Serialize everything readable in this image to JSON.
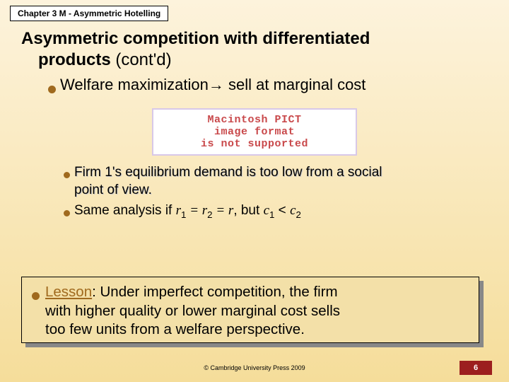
{
  "colors": {
    "bg_top": "#fdf3dc",
    "bg_bottom": "#f5dd9a",
    "chapter_bg": "#ffffff",
    "bullet_color": "#a06a1e",
    "pict_color": "#c9494b",
    "lesson_bg": "#f3e0a8",
    "lesson_word_color": "#a06a1e",
    "page_badge_bg": "#9c1f1f"
  },
  "chapter": "Chapter 3 M - Asymmetric Hotelling",
  "title_line1": "Asymmetric competition with differentiated",
  "title_line2_a": "products",
  "title_line2_b": " (cont'd)",
  "bullet1_a": "Welfare maximization",
  "bullet1_arrow": "→",
  "bullet1_b": " sell at marginal cost",
  "pict": {
    "l1": "Macintosh PICT",
    "l2": "image format",
    "l3": "is not supported"
  },
  "sub1_a": "Firm 1's equilibrium demand is too low from a social",
  "sub1_b": "point of view.",
  "sub2": {
    "pre": "Same analysis if ",
    "r": "r",
    "one": "1",
    "eq1": " = ",
    "r2": "r",
    "two": "2",
    "eq2": " = ",
    "r3": "r",
    "but": ", but ",
    "c": "c",
    "c1": "1",
    "lt": " < ",
    "c2a": "c",
    "c2b": "2"
  },
  "lesson": {
    "word": "Lesson",
    "rest1": ": Under imperfect competition, the firm",
    "rest2": "with higher quality or lower marginal cost sells",
    "rest3": "too few units from a welfare perspective."
  },
  "copyright": "© Cambridge University Press 2009",
  "page": "6"
}
